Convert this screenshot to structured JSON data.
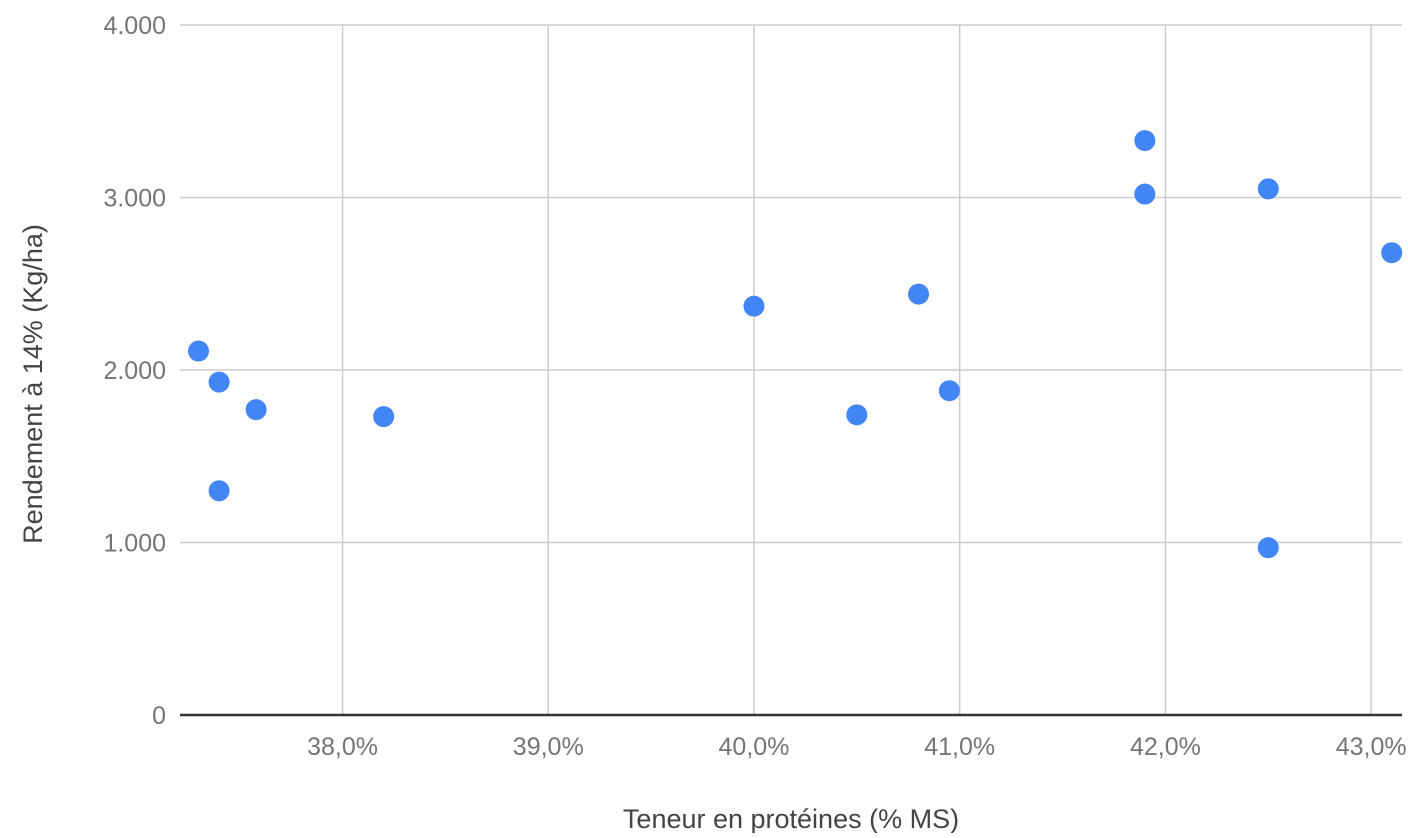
{
  "chart_data": {
    "type": "scatter",
    "xlabel": "Teneur en protéines (% MS)",
    "ylabel": "Rendement à 14% (Kg/ha)",
    "xlim": [
      37.21,
      43.15
    ],
    "ylim": [
      0,
      4000
    ],
    "x_ticks": [
      38.0,
      39.0,
      40.0,
      41.0,
      42.0,
      43.0
    ],
    "x_tick_labels": [
      "38,0%",
      "39,0%",
      "40,0%",
      "41,0%",
      "42,0%",
      "43,0%"
    ],
    "y_ticks": [
      0,
      1000,
      2000,
      3000,
      4000
    ],
    "y_tick_labels": [
      "0",
      "1.000",
      "2.000",
      "3.000",
      "4.000"
    ],
    "grid": true,
    "legend": "none",
    "point_color": "#4285f4",
    "series": [
      {
        "points": [
          {
            "x": 37.3,
            "y": 2110
          },
          {
            "x": 37.4,
            "y": 1930
          },
          {
            "x": 37.58,
            "y": 1770
          },
          {
            "x": 37.4,
            "y": 1300
          },
          {
            "x": 38.2,
            "y": 1730
          },
          {
            "x": 40.0,
            "y": 2370
          },
          {
            "x": 40.5,
            "y": 1740
          },
          {
            "x": 40.8,
            "y": 2440
          },
          {
            "x": 40.95,
            "y": 1880
          },
          {
            "x": 41.9,
            "y": 3330
          },
          {
            "x": 41.9,
            "y": 3020
          },
          {
            "x": 42.5,
            "y": 3050
          },
          {
            "x": 42.5,
            "y": 970
          },
          {
            "x": 43.1,
            "y": 2680
          }
        ]
      }
    ]
  }
}
